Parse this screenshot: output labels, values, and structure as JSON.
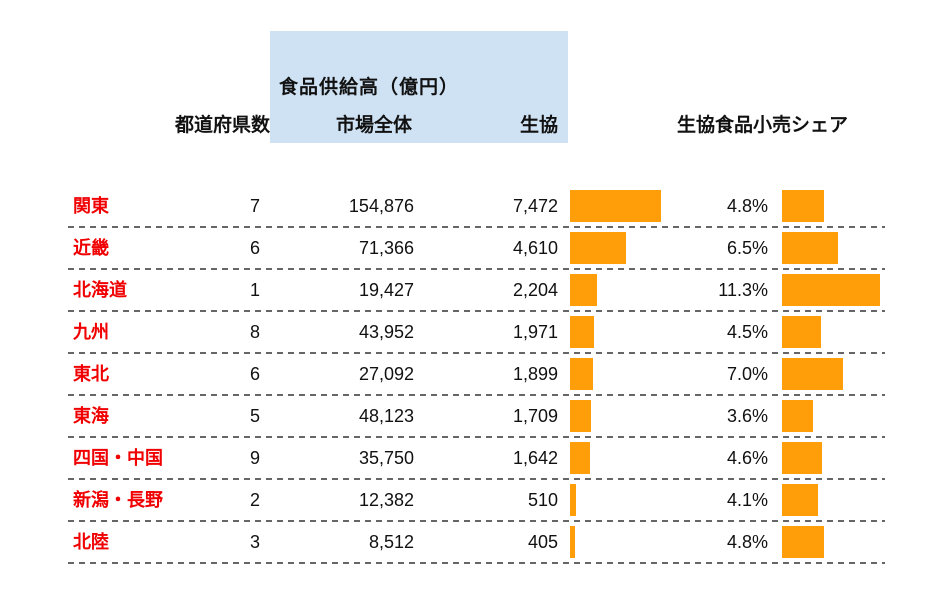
{
  "title_box": {
    "label": "食品供給高（億円）"
  },
  "column_headers": {
    "prefectures": "都道府県数",
    "market": "市場全体",
    "coop": "生協",
    "share": "生協食品小売シェア"
  },
  "colors": {
    "bar_orange": "#FF9E09",
    "header_blue": "#CFE2F3",
    "region_red": "#F00000",
    "dash_gray": "#666666",
    "text_black": "#111111"
  },
  "rows": [
    {
      "region": "関東",
      "prefectures": "7",
      "market": "154,876",
      "coop": "7,472",
      "coop_value": 7472,
      "share": "4.8%",
      "share_value": 4.8
    },
    {
      "region": "近畿",
      "prefectures": "6",
      "market": "71,366",
      "coop": "4,610",
      "coop_value": 4610,
      "share": "6.5%",
      "share_value": 6.5
    },
    {
      "region": "北海道",
      "prefectures": "1",
      "market": "19,427",
      "coop": "2,204",
      "coop_value": 2204,
      "share": "11.3%",
      "share_value": 11.3
    },
    {
      "region": "九州",
      "prefectures": "8",
      "market": "43,952",
      "coop": "1,971",
      "coop_value": 1971,
      "share": "4.5%",
      "share_value": 4.5
    },
    {
      "region": "東北",
      "prefectures": "6",
      "market": "27,092",
      "coop": "1,899",
      "coop_value": 1899,
      "share": "7.0%",
      "share_value": 7.0
    },
    {
      "region": "東海",
      "prefectures": "5",
      "market": "48,123",
      "coop": "1,709",
      "coop_value": 1709,
      "share": "3.6%",
      "share_value": 3.6
    },
    {
      "region": "四国・中国",
      "prefectures": "9",
      "market": "35,750",
      "coop": "1,642",
      "coop_value": 1642,
      "share": "4.6%",
      "share_value": 4.6
    },
    {
      "region": "新潟・長野",
      "prefectures": "2",
      "market": "12,382",
      "coop": "510",
      "coop_value": 510,
      "share": "4.1%",
      "share_value": 4.1
    },
    {
      "region": "北陸",
      "prefectures": "3",
      "market": "8,512",
      "coop": "405",
      "coop_value": 405,
      "share": "4.8%",
      "share_value": 4.8
    }
  ],
  "chart_data": {
    "type": "table",
    "title": "食品供給高（億円）",
    "columns": [
      "都道府県数",
      "市場全体",
      "生協",
      "生協食品小売シェア"
    ],
    "categories": [
      "関東",
      "近畿",
      "北海道",
      "九州",
      "東北",
      "東海",
      "四国・中国",
      "新潟・長野",
      "北陸"
    ],
    "series": [
      {
        "name": "都道府県数",
        "values": [
          7,
          6,
          1,
          8,
          6,
          5,
          9,
          2,
          3
        ]
      },
      {
        "name": "市場全体（億円）",
        "values": [
          154876,
          71366,
          19427,
          43952,
          27092,
          48123,
          35750,
          12382,
          8512
        ]
      },
      {
        "name": "生協（億円）",
        "values": [
          7472,
          4610,
          2204,
          1971,
          1899,
          1709,
          1642,
          510,
          405
        ],
        "display": "bar"
      },
      {
        "name": "生協食品小売シェア（%）",
        "values": [
          4.8,
          6.5,
          11.3,
          4.5,
          7.0,
          3.6,
          4.6,
          4.1,
          4.8
        ],
        "display": "bar"
      }
    ],
    "layout_hints": {
      "bar_orientation": "horizontal",
      "grid": "dashed-row-separators",
      "coop_bar_range": [
        0,
        7472
      ],
      "share_bar_range": [
        0,
        11.3
      ]
    }
  }
}
